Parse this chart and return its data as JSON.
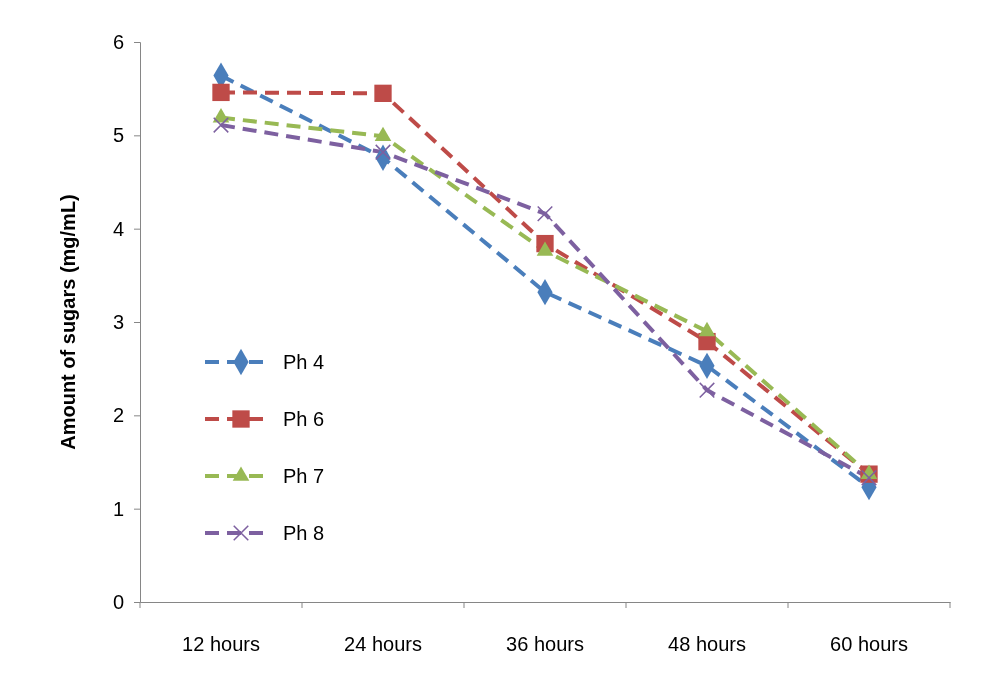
{
  "chart_data": {
    "type": "line",
    "ylabel": "Amount of sugars (mg/mL)",
    "categories": [
      "12 hours",
      "24 hours",
      "36 hours",
      "48 hours",
      "60 hours"
    ],
    "series": [
      {
        "name": "Ph 4",
        "color": "#4a7ebb",
        "marker": "diamond",
        "values": [
          5.64,
          4.76,
          3.32,
          2.53,
          1.23
        ]
      },
      {
        "name": "Ph 6",
        "color": "#be4b48",
        "marker": "square",
        "values": [
          5.46,
          5.45,
          3.84,
          2.79,
          1.37
        ]
      },
      {
        "name": "Ph 7",
        "color": "#98b954",
        "marker": "triangle",
        "values": [
          5.19,
          4.99,
          3.76,
          2.9,
          1.37
        ]
      },
      {
        "name": "Ph 8",
        "color": "#7d60a0",
        "marker": "cross",
        "values": [
          5.11,
          4.82,
          4.16,
          2.27,
          1.33
        ]
      }
    ],
    "ylim": [
      0,
      6
    ],
    "yticks": [
      0,
      1,
      2,
      3,
      4,
      5,
      6
    ],
    "grid": false,
    "legend": "left",
    "line_style": "dashed"
  }
}
